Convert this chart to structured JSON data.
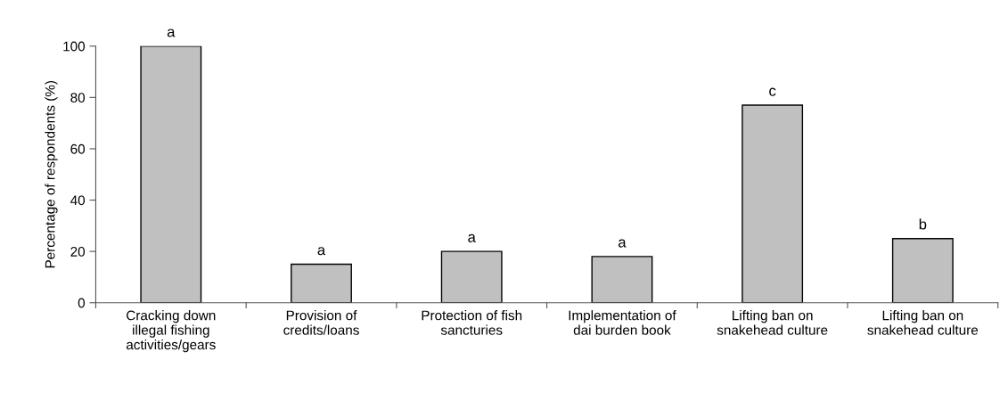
{
  "chart_data": {
    "type": "bar",
    "ylabel": "Percentage of respondents (%)",
    "categories": [
      "Cracking down\nillegal fishing\nactivities/gears",
      "Provision of\ncredits/loans",
      "Protection of fish\nsancturies",
      "Implementation of\ndai burden book",
      "Lifting ban on\nsnakehead culture",
      "Lifting ban on\nsnakehead culture"
    ],
    "values": [
      100,
      15,
      20,
      18,
      77,
      25
    ],
    "color": "#c0c0c0",
    "ylim": [
      0,
      100
    ],
    "yticks": [
      0,
      20,
      40,
      60,
      80,
      100
    ],
    "grid": false,
    "legend": false,
    "value_labels": [
      "a",
      "a",
      "a",
      "a",
      "c",
      "b"
    ]
  }
}
